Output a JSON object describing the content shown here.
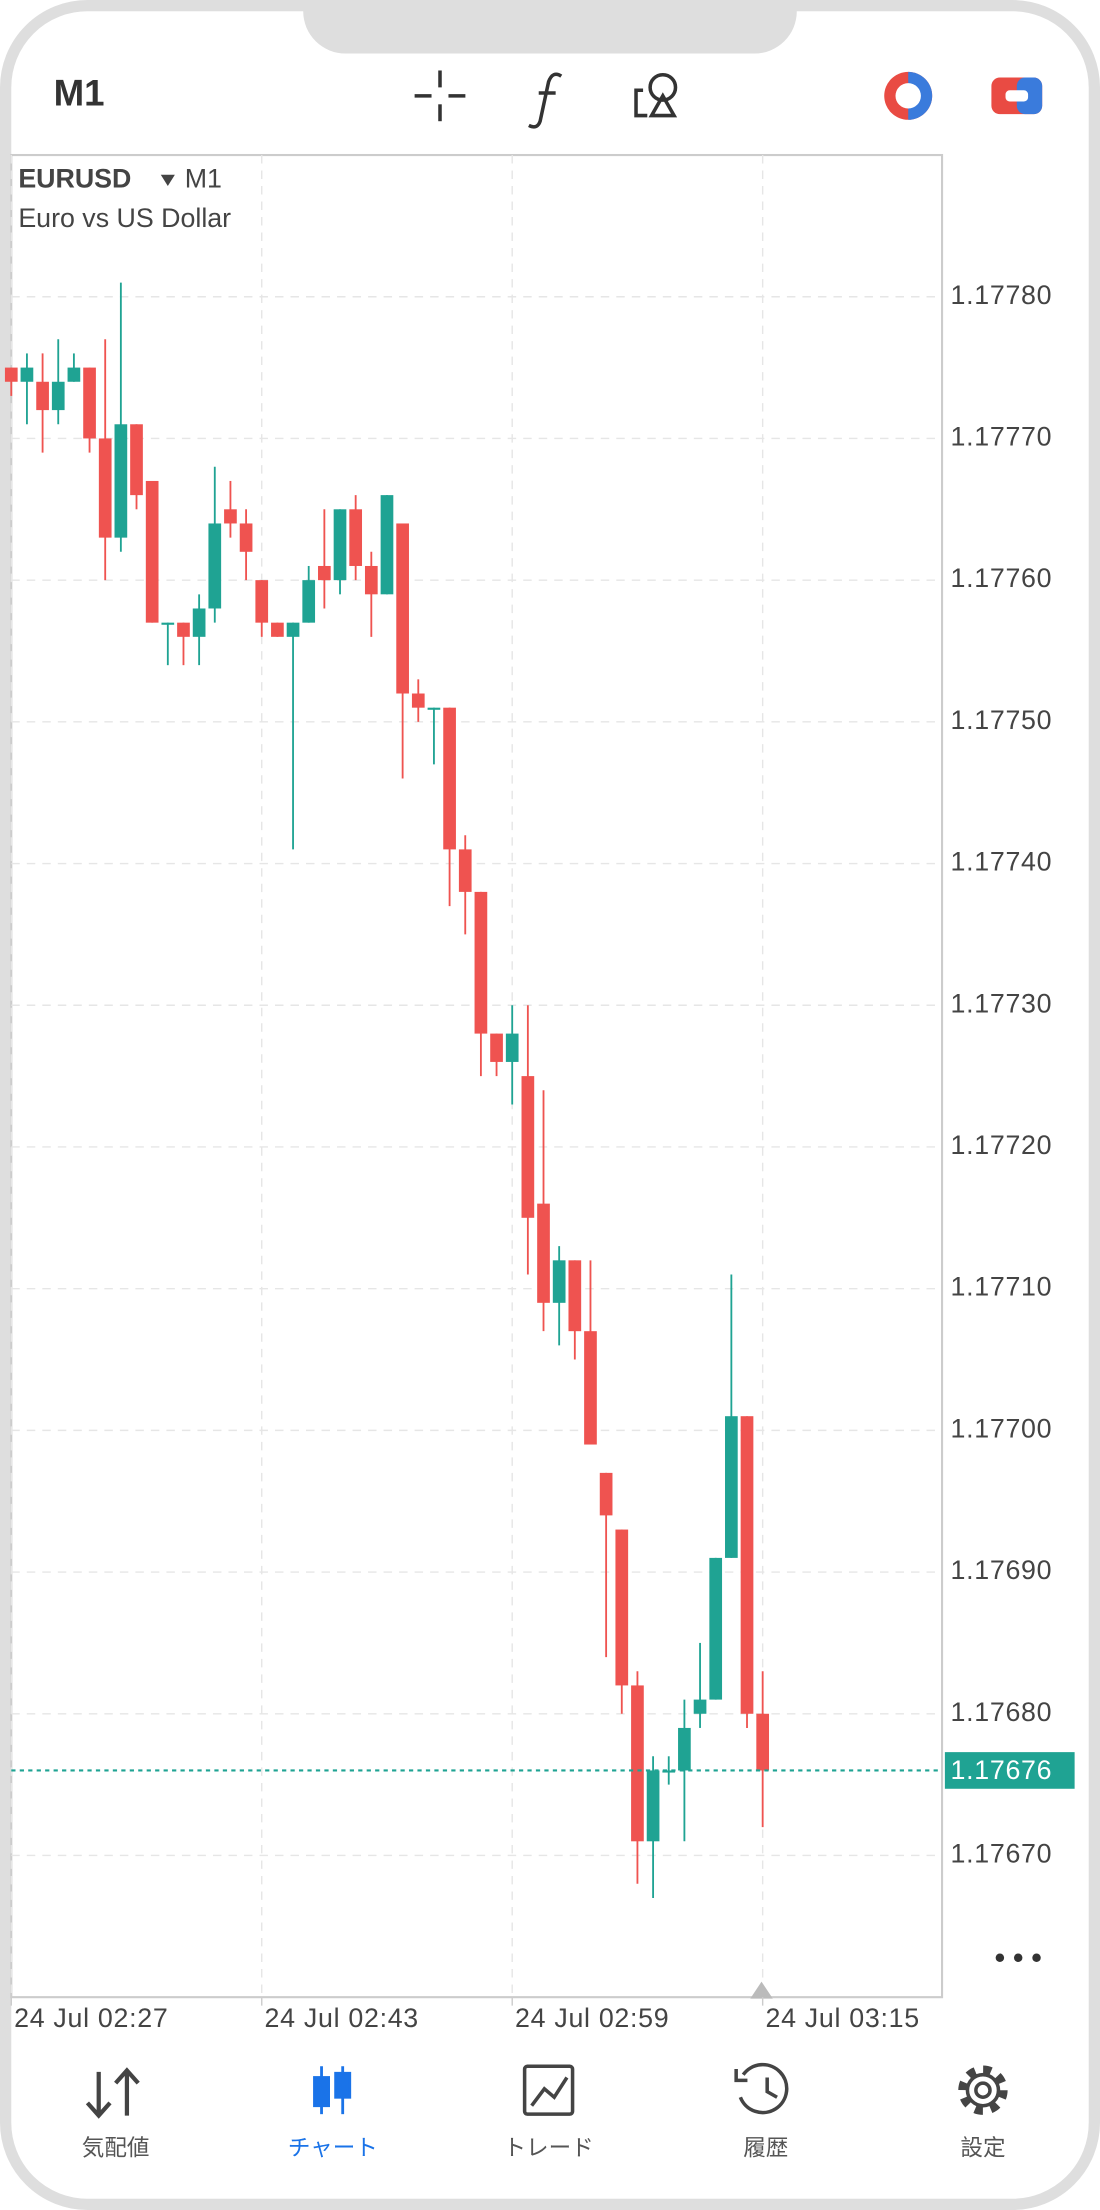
{
  "header": {
    "timeframe": "M1"
  },
  "chart_data": {
    "type": "candlestick",
    "symbol": "EURUSD",
    "timeframe": "M1",
    "subtitle": "Euro vs US Dollar",
    "categories": [
      "24 Jul 02:27",
      null,
      null,
      null,
      null,
      null,
      null,
      null,
      null,
      null,
      null,
      null,
      null,
      null,
      null,
      null,
      "24 Jul 02:43",
      null,
      null,
      null,
      null,
      null,
      null,
      null,
      null,
      null,
      null,
      null,
      null,
      null,
      null,
      null,
      "24 Jul 02:59",
      null,
      null,
      null,
      null,
      null,
      null,
      null,
      null,
      null,
      null,
      null,
      null,
      null,
      null,
      null,
      "24 Jul 03:15"
    ],
    "open": [
      1.17775,
      1.17774,
      1.17774,
      1.17772,
      1.17774,
      1.17775,
      1.1777,
      1.17763,
      1.17771,
      1.17767,
      1.17757,
      1.17757,
      1.17756,
      1.17758,
      1.17765,
      1.17764,
      1.1776,
      1.17757,
      1.17756,
      1.17757,
      1.17761,
      1.1776,
      1.17765,
      1.17761,
      1.17759,
      1.17764,
      1.17752,
      1.17751,
      1.17751,
      1.17741,
      1.17738,
      1.17728,
      1.17726,
      1.17725,
      1.17716,
      1.17709,
      1.17712,
      1.17707,
      1.17697,
      1.17693,
      1.17682,
      1.17671,
      1.17676,
      1.17676,
      1.1768,
      1.17681,
      1.17691,
      1.17701,
      1.1768
    ],
    "high": [
      1.17775,
      1.17776,
      1.17776,
      1.17777,
      1.17776,
      1.17775,
      1.17777,
      1.17781,
      1.17771,
      1.17767,
      1.17757,
      1.17757,
      1.17759,
      1.17768,
      1.17767,
      1.17765,
      1.1776,
      1.17757,
      1.17757,
      1.17761,
      1.17765,
      1.17765,
      1.17766,
      1.17762,
      1.17766,
      1.17764,
      1.17753,
      1.17751,
      1.17751,
      1.17742,
      1.17738,
      1.17728,
      1.1773,
      1.1773,
      1.17724,
      1.17713,
      1.17712,
      1.17712,
      1.17697,
      1.17693,
      1.17683,
      1.17677,
      1.17677,
      1.17681,
      1.17685,
      1.17691,
      1.17711,
      1.17701,
      1.17683
    ],
    "low": [
      1.17773,
      1.17771,
      1.17769,
      1.17771,
      1.17774,
      1.17769,
      1.1776,
      1.17762,
      1.17765,
      1.17757,
      1.17754,
      1.17754,
      1.17754,
      1.17757,
      1.17763,
      1.1776,
      1.17756,
      1.17756,
      1.17741,
      1.17757,
      1.17758,
      1.17759,
      1.1776,
      1.17756,
      1.17759,
      1.17746,
      1.1775,
      1.17747,
      1.17737,
      1.17735,
      1.17725,
      1.17725,
      1.17723,
      1.17711,
      1.17707,
      1.17706,
      1.17705,
      1.17699,
      1.17684,
      1.1768,
      1.17668,
      1.17667,
      1.17675,
      1.17671,
      1.17679,
      1.17681,
      1.17691,
      1.17679,
      1.17672
    ],
    "close": [
      1.17774,
      1.17775,
      1.17772,
      1.17774,
      1.17775,
      1.1777,
      1.17763,
      1.17771,
      1.17766,
      1.17757,
      1.17757,
      1.17756,
      1.17758,
      1.17764,
      1.17764,
      1.17762,
      1.17757,
      1.17756,
      1.17757,
      1.1776,
      1.1776,
      1.17765,
      1.17761,
      1.17759,
      1.17766,
      1.17752,
      1.17751,
      1.17751,
      1.17741,
      1.17738,
      1.17728,
      1.17726,
      1.17728,
      1.17715,
      1.17709,
      1.17712,
      1.17707,
      1.17699,
      1.17694,
      1.17682,
      1.17671,
      1.17676,
      1.17676,
      1.17679,
      1.17681,
      1.17691,
      1.17701,
      1.1768,
      1.17676
    ],
    "up_color": "#1fa393",
    "down_color": "#ef5350",
    "ylim": [
      1.1766,
      1.1779
    ],
    "yticks": [
      {
        "value": 1.1767,
        "label": "1.17670"
      },
      {
        "value": 1.1768,
        "label": "1.17680"
      },
      {
        "value": 1.1769,
        "label": "1.17690"
      },
      {
        "value": 1.177,
        "label": "1.17700"
      },
      {
        "value": 1.1771,
        "label": "1.17710"
      },
      {
        "value": 1.1772,
        "label": "1.17720"
      },
      {
        "value": 1.1773,
        "label": "1.17730"
      },
      {
        "value": 1.1774,
        "label": "1.17740"
      },
      {
        "value": 1.1775,
        "label": "1.17750"
      },
      {
        "value": 1.1776,
        "label": "1.17760"
      },
      {
        "value": 1.1777,
        "label": "1.17770"
      },
      {
        "value": 1.1778,
        "label": "1.17780"
      }
    ],
    "current_price": 1.17676,
    "grid": true
  },
  "tabs": [
    {
      "label": "気配値"
    },
    {
      "label": "チャート"
    },
    {
      "label": "トレード"
    },
    {
      "label": "履歴"
    },
    {
      "label": "設定"
    }
  ]
}
